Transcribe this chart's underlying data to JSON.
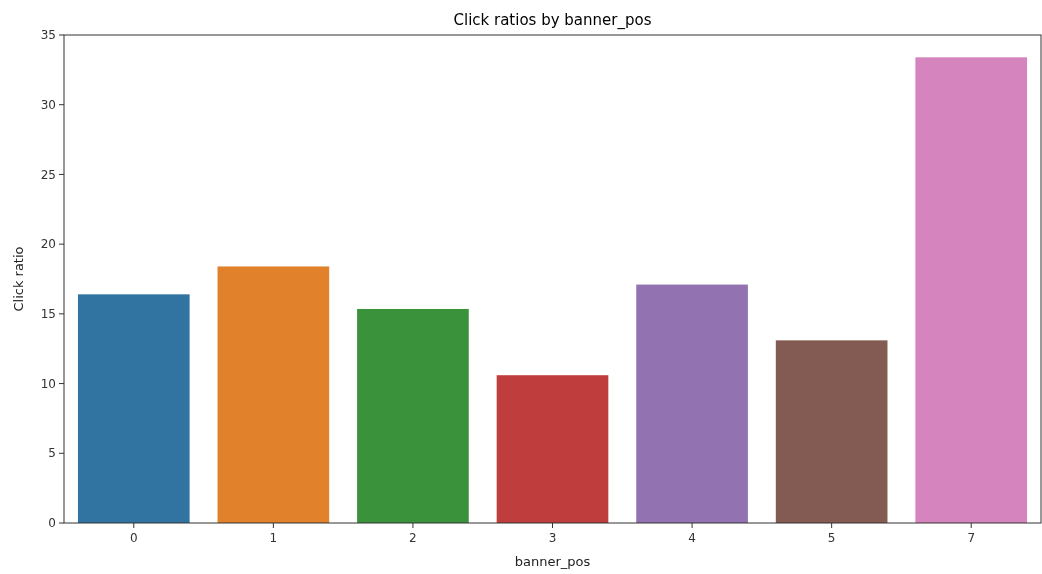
{
  "chart_data": {
    "type": "bar",
    "title": "Click ratios by banner_pos",
    "xlabel": "banner_pos",
    "ylabel": "Click ratio",
    "categories": [
      "0",
      "1",
      "2",
      "3",
      "4",
      "5",
      "7"
    ],
    "values": [
      16.4,
      18.4,
      15.35,
      10.6,
      17.1,
      13.1,
      33.4
    ],
    "colors": [
      "#3274a1",
      "#e1812c",
      "#3a923a",
      "#c03d3e",
      "#9372b2",
      "#845b53",
      "#d684bd"
    ],
    "ylim": [
      0,
      35
    ],
    "yticks": [
      0,
      5,
      10,
      15,
      20,
      25,
      30,
      35
    ],
    "grid": false
  }
}
